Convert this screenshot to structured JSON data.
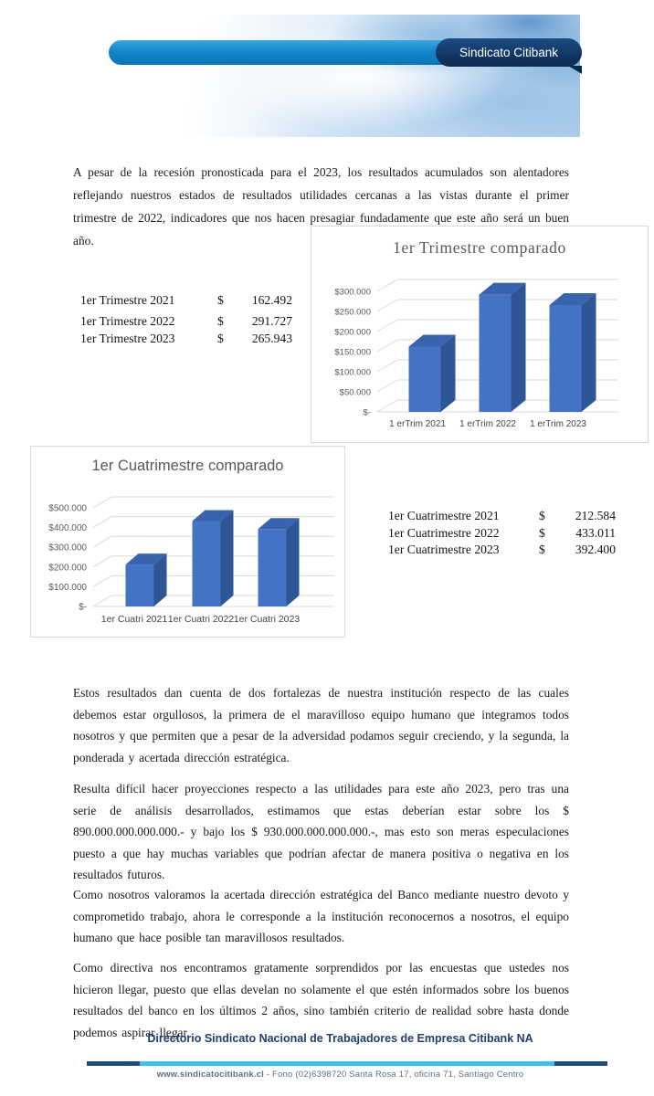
{
  "header": {
    "brand": "Sindicato Citibank"
  },
  "intro": "A pesar de la recesión pronosticada para el 2023, los resultados acumulados son alentadores reflejando nuestros estados de resultados utilidades cercanas a las vistas durante el primer trimestre de 2022, indicadores que nos hacen presagiar fundadamente que este año será un buen año.",
  "tables": {
    "trimestre": {
      "rows": [
        {
          "label": "1er Trimestre 2021",
          "currency": "$",
          "value": "162.492"
        },
        {
          "label": "1er Trimestre 2022",
          "currency": "$",
          "value": "291.727"
        },
        {
          "label": "1er Trimestre 2023",
          "currency": "$",
          "value": "265.943"
        }
      ]
    },
    "cuatrimestre": {
      "rows": [
        {
          "label": "1er Cuatrimestre 2021",
          "currency": "$",
          "value": "212.584"
        },
        {
          "label": "1er Cuatrimestre 2022",
          "currency": "$",
          "value": "433.011"
        },
        {
          "label": "1er Cuatrimestre 2023",
          "currency": "$",
          "value": "392.400"
        }
      ]
    }
  },
  "chart_data": [
    {
      "type": "bar",
      "style": "3d",
      "title": "1er Trimestre comparado",
      "categories": [
        "1 erTrim 2021",
        "1 erTrim 2022",
        "1 erTrim 2023"
      ],
      "values": [
        162492,
        291727,
        265943
      ],
      "xlabel": "",
      "ylabel": "",
      "ylim": [
        0,
        300000
      ],
      "yticks": [
        0,
        50000,
        100000,
        150000,
        200000,
        250000,
        300000
      ],
      "ytick_labels": [
        "$-",
        "$50.000",
        "$100.000",
        "$150.000",
        "$200.000",
        "$250.000",
        "$300.000"
      ],
      "grid": true,
      "legend": false,
      "bar_color": "#4472C4",
      "bar_side_color": "#2E5596",
      "bar_top_color": "#3A63AE"
    },
    {
      "type": "bar",
      "style": "3d",
      "title": "1er Cuatrimestre comparado",
      "categories": [
        "1er Cuatri 2021",
        "1er Cuatri 2022",
        "1er Cuatri 2023"
      ],
      "values": [
        212584,
        433011,
        392400
      ],
      "xlabel": "",
      "ylabel": "",
      "ylim": [
        0,
        500000
      ],
      "yticks": [
        0,
        100000,
        200000,
        300000,
        400000,
        500000
      ],
      "ytick_labels": [
        "$-",
        "$100.000",
        "$200.000",
        "$300.000",
        "$400.000",
        "$500.000"
      ],
      "grid": true,
      "legend": false,
      "bar_color": "#4472C4",
      "bar_side_color": "#2E5596",
      "bar_top_color": "#3A63AE"
    }
  ],
  "paragraphs": [
    "Estos resultados dan cuenta de dos fortalezas de nuestra institución respecto de las cuales debemos estar orgullosos, la primera de el maravilloso equipo humano que integramos todos nosotros y que permiten que a pesar de la adversidad podamos seguir creciendo, y la segunda, la ponderada y acertada dirección estratégica.",
    "Resulta difícil hacer proyecciones respecto a las utilidades para este año 2023, pero tras una serie de análisis desarrollados, estimamos que estas deberían estar sobre los $ 890.000.000.000.000.- y bajo los $ 930.000.000.000.000.-, mas esto son meras especulaciones puesto a que hay muchas variables que podrían afectar de manera positiva o negativa en los resultados futuros.",
    "Como nosotros valoramos la acertada dirección estratégica del Banco mediante nuestro devoto y comprometido trabajo, ahora le corresponde a la institución reconocernos a nosotros, el equipo humano que hace posible tan maravillosos resultados.",
    "Como directiva nos encontramos gratamente sorprendidos por las encuestas que ustedes nos hicieron llegar, puesto que ellas develan no solamente el que estén informados sobre los buenos resultados del banco en los últimos 2 años, sino también criterio de realidad sobre hasta donde podemos aspirar llegar."
  ],
  "footer": {
    "directory": "Directorio Sindicato Nacional de Trabajadores de Empresa Citibank NA",
    "website": "www.sindicatocitibank.cl",
    "contact": "-  Fono (02)6398720  Santa Rosa 17, oficina 71, Santiago Centro"
  },
  "colors": {
    "banner_blue": "#1287CC",
    "banner_navy": "#11335F",
    "grid": "#D9D9D9",
    "axis_text": "#595959",
    "category_text": "#454545",
    "footer_navy": "#1F4E79",
    "footer_cyan": "#41BEEC"
  }
}
